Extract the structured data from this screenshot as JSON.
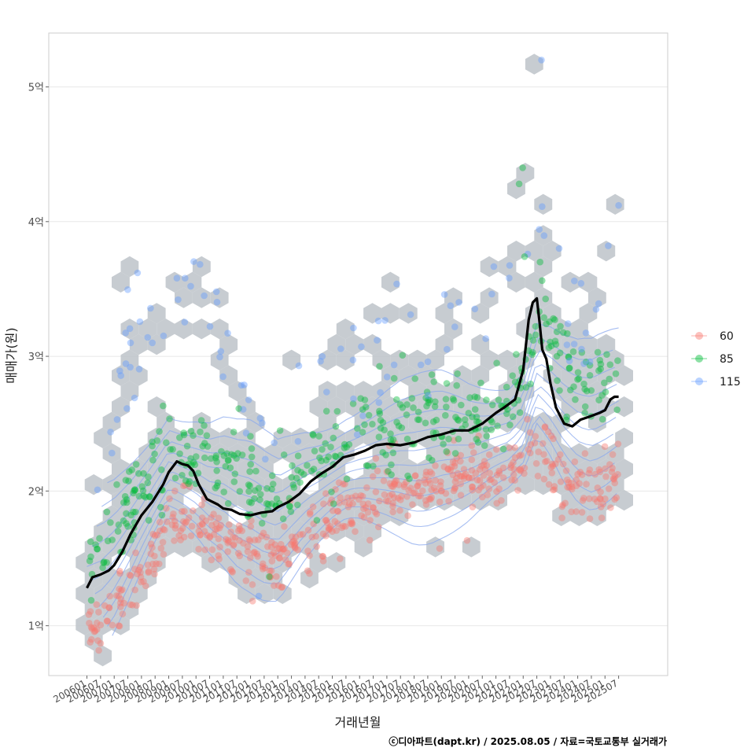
{
  "chart_data": {
    "type": "scatter",
    "title": "",
    "xlabel": "거래년월",
    "ylabel": "매매가(원)",
    "caption": "ⓒ디아파트(dapt.kr) / 2025.08.05 / 자료=국토교통부 실거래가",
    "y_unit": "억",
    "ylim": [
      0.63,
      5.4
    ],
    "y_ticks": [
      {
        "value": 1,
        "label": "1억"
      },
      {
        "value": 2,
        "label": "2억"
      },
      {
        "value": 3,
        "label": "3억"
      },
      {
        "value": 4,
        "label": "4억"
      },
      {
        "value": 5,
        "label": "5억"
      }
    ],
    "xlim": [
      2004.6,
      2027.3
    ],
    "x_ticks": [
      {
        "value": 2006.0,
        "label": "200601"
      },
      {
        "value": 2006.5,
        "label": "200607"
      },
      {
        "value": 2007.0,
        "label": "200701"
      },
      {
        "value": 2007.5,
        "label": "200707"
      },
      {
        "value": 2008.0,
        "label": "200801"
      },
      {
        "value": 2008.5,
        "label": "200807"
      },
      {
        "value": 2009.0,
        "label": "200901"
      },
      {
        "value": 2009.5,
        "label": "200907"
      },
      {
        "value": 2010.0,
        "label": "201001"
      },
      {
        "value": 2010.5,
        "label": "201007"
      },
      {
        "value": 2011.0,
        "label": "201101"
      },
      {
        "value": 2011.5,
        "label": "201107"
      },
      {
        "value": 2012.0,
        "label": "201201"
      },
      {
        "value": 2012.5,
        "label": "201207"
      },
      {
        "value": 2013.0,
        "label": "201301"
      },
      {
        "value": 2013.5,
        "label": "201307"
      },
      {
        "value": 2014.0,
        "label": "201401"
      },
      {
        "value": 2014.5,
        "label": "201407"
      },
      {
        "value": 2015.0,
        "label": "201501"
      },
      {
        "value": 2015.5,
        "label": "201507"
      },
      {
        "value": 2016.0,
        "label": "201601"
      },
      {
        "value": 2016.5,
        "label": "201607"
      },
      {
        "value": 2017.0,
        "label": "201701"
      },
      {
        "value": 2017.5,
        "label": "201707"
      },
      {
        "value": 2018.0,
        "label": "201801"
      },
      {
        "value": 2018.5,
        "label": "201807"
      },
      {
        "value": 2019.0,
        "label": "201901"
      },
      {
        "value": 2019.5,
        "label": "201907"
      },
      {
        "value": 2020.0,
        "label": "202001"
      },
      {
        "value": 2020.5,
        "label": "202007"
      },
      {
        "value": 2021.0,
        "label": "202101"
      },
      {
        "value": 2021.5,
        "label": "202107"
      },
      {
        "value": 2022.0,
        "label": "202201"
      },
      {
        "value": 2022.5,
        "label": "202207"
      },
      {
        "value": 2023.0,
        "label": "202301"
      },
      {
        "value": 2023.5,
        "label": "202307"
      },
      {
        "value": 2024.0,
        "label": "202401"
      },
      {
        "value": 2024.5,
        "label": "202407"
      },
      {
        "value": 2025.0,
        "label": "202501"
      },
      {
        "value": 2025.5,
        "label": "202507"
      }
    ],
    "legend": {
      "position": "right",
      "entries": [
        {
          "label": "60",
          "color": "#F8766D"
        },
        {
          "label": "85",
          "color": "#00BA38"
        },
        {
          "label": "115",
          "color": "#619CFF"
        }
      ]
    },
    "colors": {
      "grid": "#e8e8e8",
      "panel_border": "#cccccc",
      "hex": "#bdc3c9",
      "trend": "#000000",
      "contour": "#8aa8ee"
    },
    "trend_line": {
      "name": "moving average",
      "x": [
        2006.0,
        2006.2,
        2006.5,
        2006.8,
        2007.0,
        2007.3,
        2007.6,
        2008.0,
        2008.4,
        2008.8,
        2009.0,
        2009.3,
        2009.5,
        2009.7,
        2009.9,
        2010.1,
        2010.4,
        2010.6,
        2010.8,
        2011.0,
        2011.3,
        2011.6,
        2012.0,
        2012.4,
        2012.8,
        2013.0,
        2013.4,
        2013.8,
        2014.2,
        2014.6,
        2015.0,
        2015.4,
        2015.8,
        2016.2,
        2016.6,
        2017.0,
        2017.5,
        2018.0,
        2018.5,
        2019.0,
        2019.5,
        2020.0,
        2020.5,
        2021.0,
        2021.3,
        2021.7,
        2022.0,
        2022.2,
        2022.35,
        2022.5,
        2022.6,
        2022.7,
        2022.85,
        2023.0,
        2023.2,
        2023.5,
        2023.8,
        2024.1,
        2024.4,
        2024.8,
        2025.0,
        2025.2,
        2025.35,
        2025.5
      ],
      "y": [
        1.28,
        1.36,
        1.38,
        1.41,
        1.45,
        1.55,
        1.68,
        1.82,
        1.92,
        2.05,
        2.14,
        2.22,
        2.2,
        2.19,
        2.15,
        2.05,
        1.94,
        1.92,
        1.9,
        1.87,
        1.86,
        1.83,
        1.82,
        1.84,
        1.85,
        1.88,
        1.92,
        1.98,
        2.07,
        2.13,
        2.18,
        2.25,
        2.27,
        2.3,
        2.34,
        2.35,
        2.34,
        2.36,
        2.4,
        2.42,
        2.45,
        2.45,
        2.5,
        2.58,
        2.62,
        2.68,
        2.9,
        3.27,
        3.4,
        3.43,
        3.25,
        3.05,
        2.98,
        2.8,
        2.62,
        2.5,
        2.48,
        2.53,
        2.55,
        2.58,
        2.6,
        2.68,
        2.7,
        2.7
      ]
    },
    "series": [
      {
        "name": "60",
        "color": "#F8766D",
        "trend_x": [
          2006.0,
          2006.5,
          2007.0,
          2007.5,
          2008.0,
          2008.5,
          2009.0,
          2009.5,
          2010.0,
          2010.5,
          2011.0,
          2011.5,
          2012.0,
          2012.5,
          2013.0,
          2013.5,
          2014.0,
          2014.5,
          2015.0,
          2015.5,
          2016.0,
          2016.5,
          2017.0,
          2017.5,
          2018.0,
          2018.5,
          2019.0,
          2019.5,
          2020.0,
          2020.5,
          2021.0,
          2021.5,
          2022.0,
          2022.5,
          2023.0,
          2023.5,
          2024.0,
          2024.5,
          2025.0,
          2025.5
        ],
        "trend_y": [
          0.97,
          1.0,
          1.15,
          1.25,
          1.35,
          1.55,
          1.78,
          1.85,
          1.8,
          1.72,
          1.67,
          1.6,
          1.55,
          1.55,
          1.55,
          1.6,
          1.65,
          1.7,
          1.78,
          1.85,
          1.9,
          1.95,
          2.0,
          2.0,
          2.02,
          2.05,
          2.08,
          2.1,
          2.12,
          2.1,
          2.1,
          2.12,
          2.2,
          2.35,
          2.25,
          2.05,
          2.0,
          1.98,
          2.05,
          2.1
        ],
        "spread": 0.12
      },
      {
        "name": "85",
        "color": "#00BA38",
        "trend_x": [
          2006.0,
          2006.5,
          2007.0,
          2007.5,
          2008.0,
          2008.5,
          2009.0,
          2009.5,
          2010.0,
          2010.5,
          2011.0,
          2011.5,
          2012.0,
          2012.5,
          2013.0,
          2013.5,
          2014.0,
          2014.5,
          2015.0,
          2015.5,
          2016.0,
          2016.5,
          2017.0,
          2017.5,
          2018.0,
          2018.5,
          2019.0,
          2019.5,
          2020.0,
          2020.5,
          2021.0,
          2021.5,
          2022.0,
          2022.5,
          2023.0,
          2023.5,
          2024.0,
          2024.5,
          2025.0,
          2025.5
        ],
        "trend_y": [
          1.45,
          1.5,
          1.62,
          1.8,
          2.0,
          2.2,
          2.4,
          2.35,
          2.3,
          2.22,
          2.2,
          2.12,
          2.08,
          2.0,
          1.95,
          2.05,
          2.15,
          2.22,
          2.3,
          2.38,
          2.42,
          2.45,
          2.48,
          2.5,
          2.5,
          2.52,
          2.55,
          2.55,
          2.55,
          2.58,
          2.62,
          2.66,
          2.8,
          3.2,
          3.1,
          2.95,
          2.85,
          2.82,
          2.88,
          2.95
        ],
        "spread": 0.16
      },
      {
        "name": "115",
        "color": "#619CFF",
        "trend_x": [
          2006.0,
          2006.5,
          2007.0,
          2007.5,
          2008.0,
          2008.5,
          2009.0,
          2009.5,
          2010.0,
          2010.5,
          2011.0,
          2011.5,
          2012.0,
          2012.5,
          2013.0,
          2013.5,
          2014.0,
          2014.5,
          2015.0,
          2015.5,
          2016.0,
          2016.5,
          2017.0,
          2017.5,
          2018.0,
          2018.5,
          2019.0,
          2019.5,
          2020.0,
          2020.5,
          2021.0,
          2021.5,
          2022.0,
          2022.5,
          2023.0,
          2023.5,
          2024.0,
          2024.5,
          2025.0,
          2025.5
        ],
        "trend_y": [
          1.0,
          2.3,
          2.6,
          3.0,
          3.1,
          3.1,
          3.3,
          3.4,
          3.4,
          3.4,
          2.9,
          2.8,
          2.65,
          2.6,
          2.55,
          2.5,
          2.6,
          2.7,
          2.8,
          2.85,
          2.9,
          3.0,
          3.05,
          3.1,
          3.1,
          3.2,
          3.2,
          3.25,
          3.3,
          3.4,
          3.5,
          3.6,
          3.6,
          3.8,
          3.3,
          3.2,
          3.1,
          3.2,
          3.5,
          4.1
        ],
        "spread": 0.14
      }
    ],
    "outliers": [
      {
        "series": "115",
        "x": 2022.67,
        "y": 5.2
      },
      {
        "series": "85",
        "x": 2021.98,
        "y": 4.4
      },
      {
        "series": "85",
        "x": 2021.85,
        "y": 4.28
      },
      {
        "series": "115",
        "x": 2025.5,
        "y": 4.12
      },
      {
        "series": "115",
        "x": 2025.12,
        "y": 3.82
      },
      {
        "series": "115",
        "x": 2023.32,
        "y": 3.8
      },
      {
        "series": "115",
        "x": 2009.6,
        "y": 3.58
      },
      {
        "series": "115",
        "x": 2009.3,
        "y": 3.58
      },
      {
        "series": "115",
        "x": 2010.75,
        "y": 3.48
      },
      {
        "series": "115",
        "x": 2010.3,
        "y": 3.45
      },
      {
        "series": "85",
        "x": 2022.62,
        "y": 3.7
      },
      {
        "series": "85",
        "x": 2022.05,
        "y": 3.74
      },
      {
        "series": "115",
        "x": 2007.6,
        "y": 3.1
      },
      {
        "series": "115",
        "x": 2008.4,
        "y": 3.1
      },
      {
        "series": "115",
        "x": 2012.3,
        "y": 1.22
      }
    ]
  }
}
